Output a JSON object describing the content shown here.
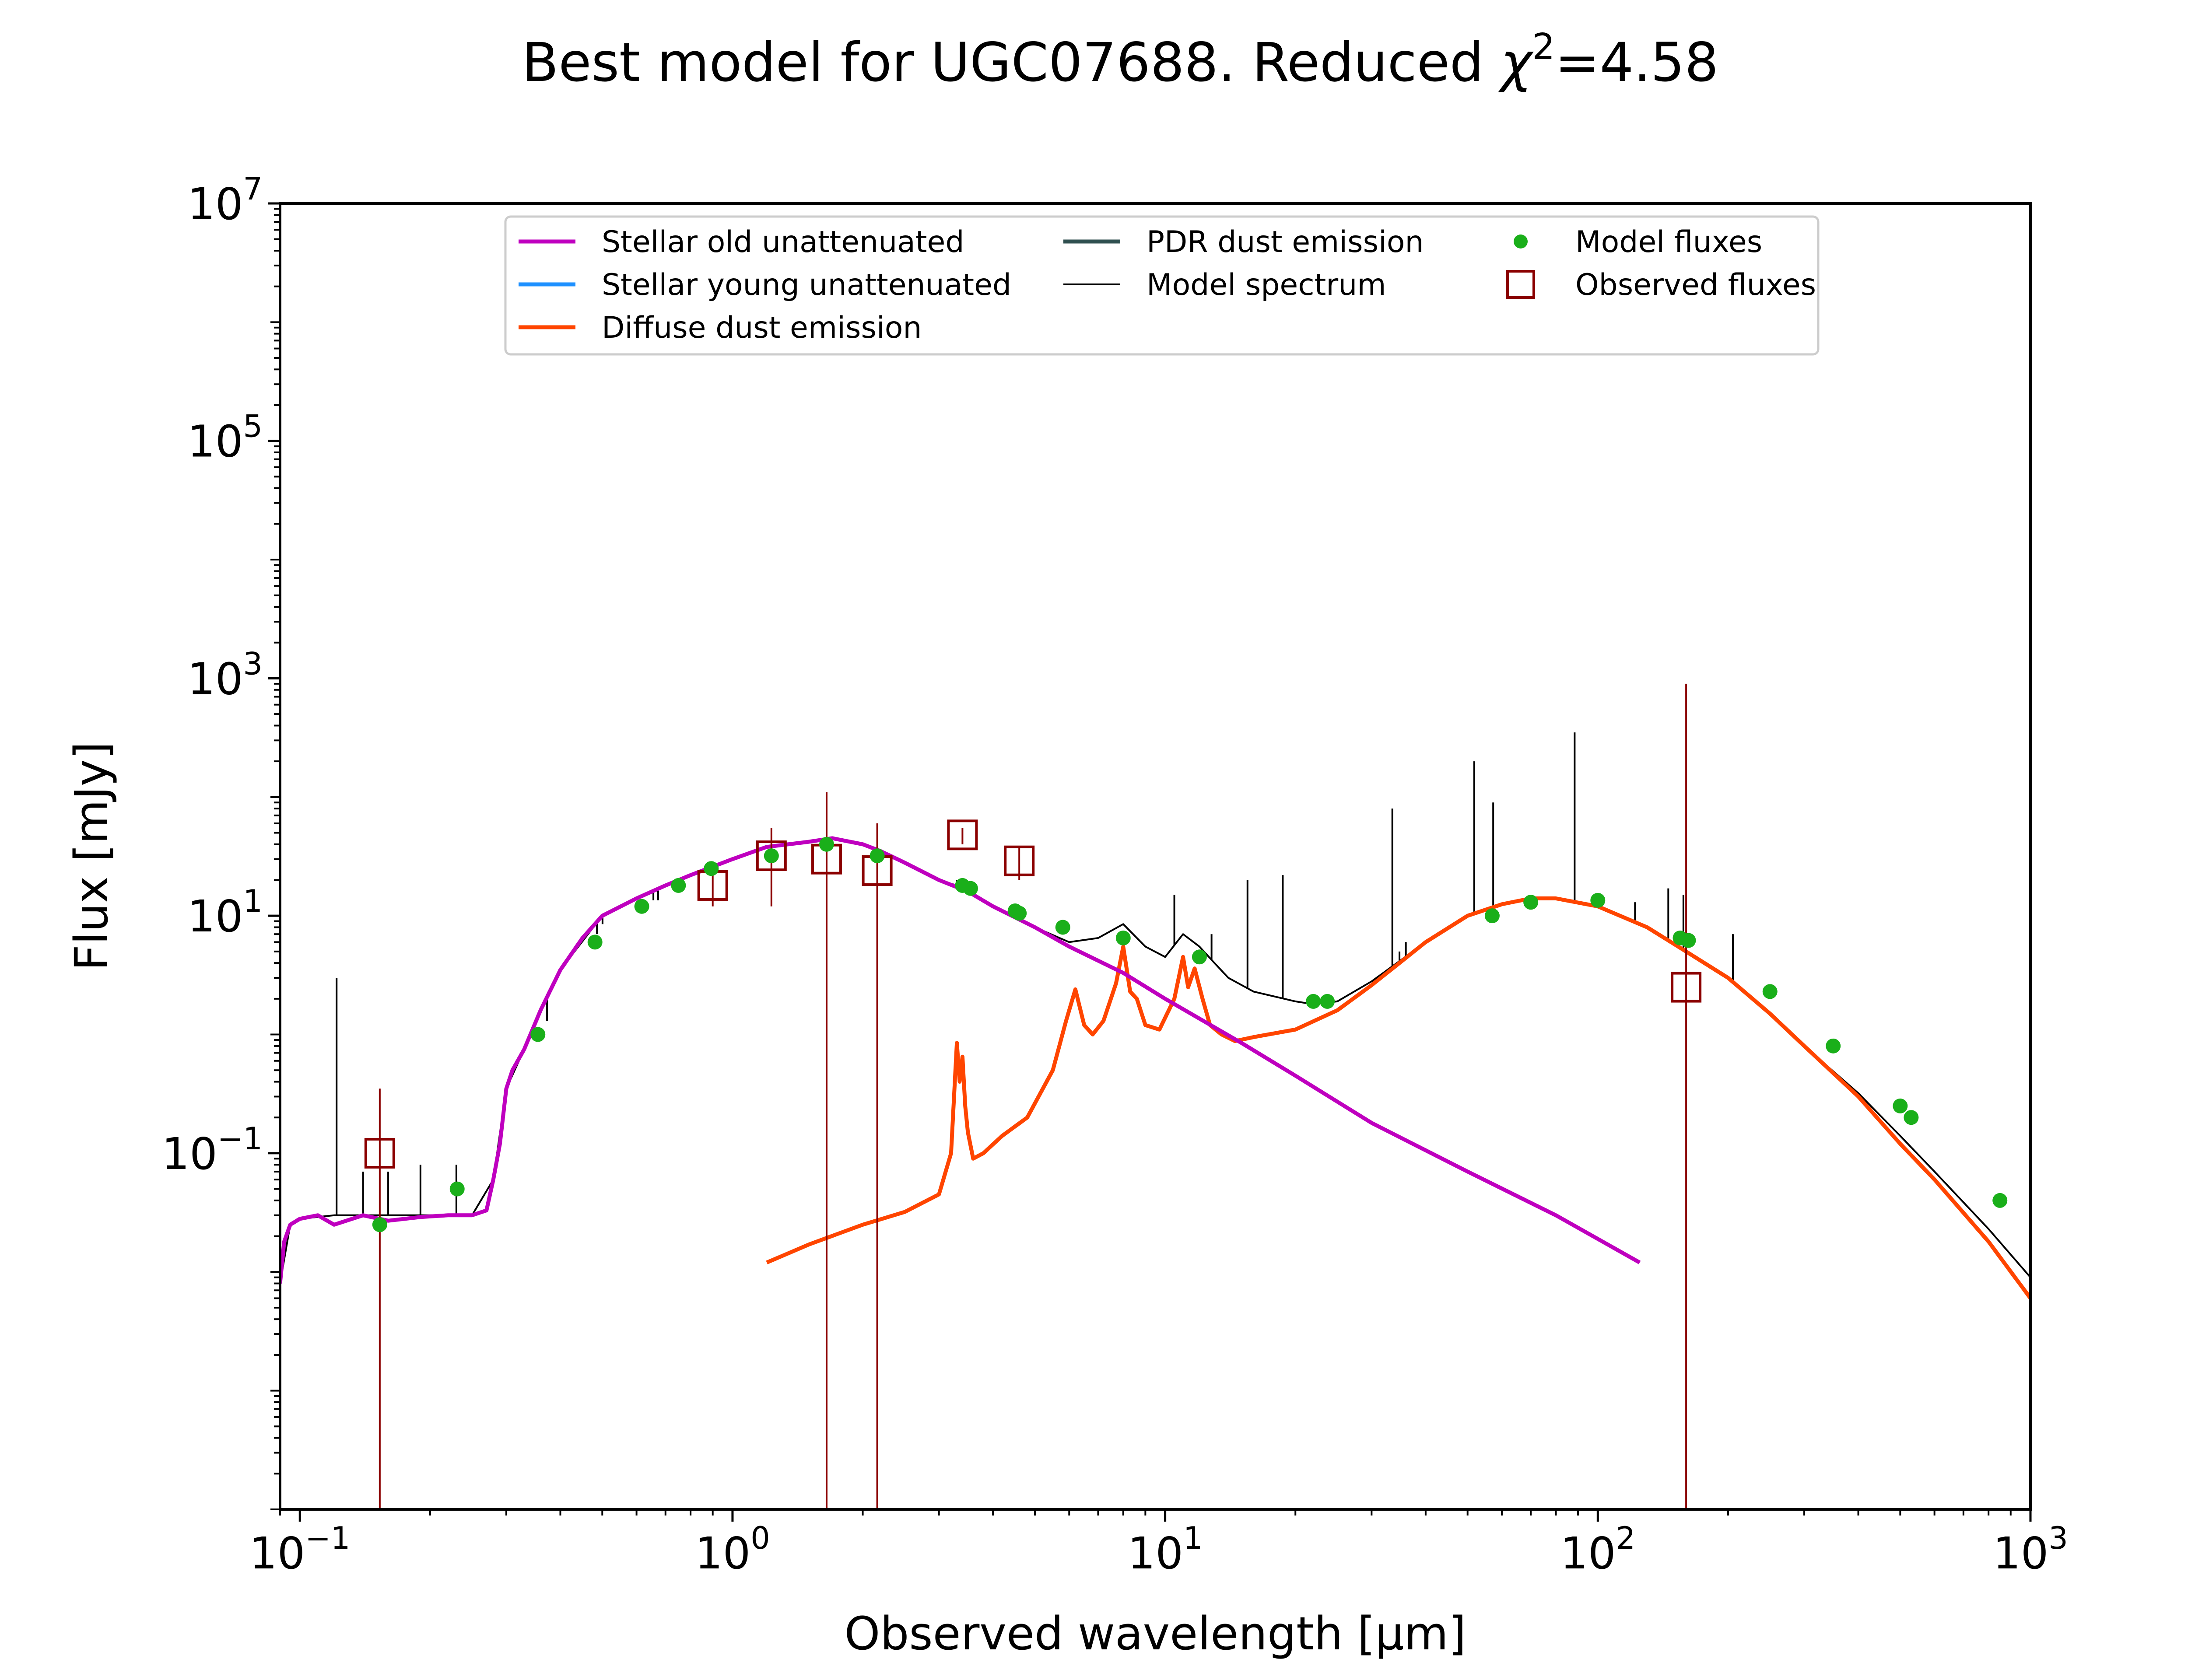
{
  "chart_data": {
    "type": "line",
    "title": "Best model for UGC07688. Reduced χ²=4.58",
    "title_parts": {
      "main": "Best model for UGC07688. Reduced ",
      "chi": "χ",
      "sup": "2",
      "value": "=4.58"
    },
    "xlabel": "Observed wavelength [μm]",
    "ylabel": "Flux [mJy]",
    "x_scale": "log",
    "y_scale": "log",
    "xlim": [
      0.09,
      1000
    ],
    "ylim": [
      0.0001,
      10000000
    ],
    "x_ticks": [
      {
        "value": 0.1,
        "base": "10",
        "exp": "−1"
      },
      {
        "value": 1,
        "base": "10",
        "exp": "0"
      },
      {
        "value": 10,
        "base": "10",
        "exp": "1"
      },
      {
        "value": 100,
        "base": "10",
        "exp": "2"
      },
      {
        "value": 1000,
        "base": "10",
        "exp": "3"
      }
    ],
    "y_ticks": [
      {
        "value": 0.1,
        "base": "10",
        "exp": "−1"
      },
      {
        "value": 10,
        "base": "10",
        "exp": "1"
      },
      {
        "value": 1000,
        "base": "10",
        "exp": "3"
      },
      {
        "value": 100000,
        "base": "10",
        "exp": "5"
      },
      {
        "value": 10000000,
        "base": "10",
        "exp": "7"
      }
    ],
    "grid": false,
    "legend_position": "top-center",
    "legend": [
      {
        "label": "Stellar old unattenuated",
        "color": "#bf00bf",
        "kind": "line"
      },
      {
        "label": "Stellar young unattenuated",
        "color": "#1e90ff",
        "kind": "line"
      },
      {
        "label": "Diffuse dust emission",
        "color": "#ff4500",
        "kind": "line"
      },
      {
        "label": "PDR dust emission",
        "color": "#2f4f4f",
        "kind": "line"
      },
      {
        "label": "Model spectrum",
        "color": "#000000",
        "kind": "thin-line"
      },
      {
        "label": "Model fluxes",
        "color": "#1aaf1a",
        "kind": "dot"
      },
      {
        "label": "Observed fluxes",
        "color": "#8b0000",
        "kind": "square"
      }
    ],
    "series": [
      {
        "name": "Stellar old unattenuated",
        "color": "#bf00bf",
        "x": [
          0.09,
          0.092,
          0.095,
          0.1,
          0.11,
          0.12,
          0.14,
          0.16,
          0.19,
          0.22,
          0.25,
          0.27,
          0.28,
          0.29,
          0.3,
          0.31,
          0.33,
          0.36,
          0.4,
          0.45,
          0.5,
          0.6,
          0.7,
          0.8,
          1.0,
          1.2,
          1.5,
          1.7,
          2.0,
          2.2,
          2.5,
          3.0,
          3.5,
          4.0,
          5.0,
          6.0,
          8.0,
          10,
          15,
          20,
          30,
          50,
          80,
          125
        ],
        "values": [
          0.008,
          0.018,
          0.025,
          0.028,
          0.03,
          0.025,
          0.03,
          0.027,
          0.029,
          0.03,
          0.03,
          0.033,
          0.06,
          0.12,
          0.35,
          0.5,
          0.75,
          1.6,
          3.5,
          6.5,
          10,
          14,
          18,
          22,
          30,
          38,
          42,
          45,
          40,
          35,
          28,
          20,
          16,
          12,
          8,
          5.5,
          3.3,
          2.0,
          0.85,
          0.45,
          0.18,
          0.07,
          0.03,
          0.012
        ]
      },
      {
        "name": "Diffuse dust emission",
        "color": "#ff4500",
        "x": [
          1.2,
          1.5,
          2.0,
          2.5,
          3.0,
          3.2,
          3.3,
          3.35,
          3.4,
          3.45,
          3.5,
          3.6,
          3.8,
          4.2,
          4.8,
          5.5,
          5.9,
          6.2,
          6.5,
          6.8,
          7.2,
          7.7,
          8.0,
          8.3,
          8.6,
          9.0,
          9.7,
          10.5,
          11.0,
          11.3,
          11.7,
          12.2,
          12.7,
          13.5,
          14.5,
          16,
          20,
          25,
          30,
          40,
          50,
          60,
          70,
          80,
          100,
          130,
          160,
          200,
          250,
          300,
          400,
          500,
          600,
          800,
          1000
        ],
        "values": [
          0.012,
          0.017,
          0.025,
          0.032,
          0.045,
          0.1,
          0.85,
          0.4,
          0.65,
          0.25,
          0.15,
          0.09,
          0.1,
          0.14,
          0.2,
          0.5,
          1.3,
          2.4,
          1.2,
          1.0,
          1.3,
          2.7,
          5.5,
          2.3,
          2.0,
          1.2,
          1.1,
          2.0,
          4.5,
          2.5,
          3.6,
          2.0,
          1.2,
          1.0,
          0.88,
          0.95,
          1.1,
          1.6,
          2.6,
          6.0,
          10,
          12.5,
          14,
          14,
          12,
          8,
          5,
          3.0,
          1.5,
          0.8,
          0.3,
          0.12,
          0.06,
          0.018,
          0.006
        ]
      },
      {
        "name": "Model spectrum",
        "color": "#000000",
        "x": [
          0.09,
          0.095,
          0.1,
          0.12,
          0.15,
          0.2,
          0.25,
          0.28,
          0.3,
          0.33,
          0.36,
          0.4,
          0.5,
          0.6,
          0.8,
          1.0,
          1.2,
          1.5,
          1.7,
          2.0,
          2.5,
          3.0,
          3.3,
          3.5,
          4.0,
          5.0,
          6.0,
          7.0,
          8.0,
          9.0,
          10,
          11,
          12,
          13,
          14,
          16,
          20,
          22,
          25,
          30,
          40,
          50,
          60,
          70,
          80,
          100,
          130,
          160,
          200,
          250,
          300,
          400,
          500,
          600,
          800,
          1000
        ],
        "values": [
          0.008,
          0.025,
          0.028,
          0.03,
          0.03,
          0.03,
          0.03,
          0.06,
          0.35,
          0.75,
          1.6,
          3.5,
          10,
          14,
          22,
          30,
          38,
          42,
          45,
          40,
          28,
          20,
          18,
          16,
          12,
          8,
          6,
          6.5,
          8.5,
          5.5,
          4.5,
          7,
          5.5,
          4,
          3,
          2.3,
          1.9,
          1.8,
          1.9,
          2.8,
          6.0,
          10,
          12.5,
          14,
          14,
          12,
          8,
          5,
          3.0,
          1.5,
          0.8,
          0.32,
          0.14,
          0.07,
          0.023,
          0.009
        ]
      }
    ],
    "emission_lines": [
      {
        "x": 0.1216,
        "peak": 3.0
      },
      {
        "x": 0.14,
        "peak": 0.07
      },
      {
        "x": 0.16,
        "peak": 0.07
      },
      {
        "x": 0.19,
        "peak": 0.08
      },
      {
        "x": 0.23,
        "peak": 0.08
      },
      {
        "x": 0.3727,
        "peak": 1.3
      },
      {
        "x": 0.4861,
        "peak": 7.0
      },
      {
        "x": 0.5007,
        "peak": 8.5
      },
      {
        "x": 0.6563,
        "peak": 13.5
      },
      {
        "x": 0.673,
        "peak": 13.5
      },
      {
        "x": 3.3,
        "peak": 20
      },
      {
        "x": 10.5,
        "peak": 15
      },
      {
        "x": 12.8,
        "peak": 7.0
      },
      {
        "x": 15.5,
        "peak": 20
      },
      {
        "x": 18.7,
        "peak": 22
      },
      {
        "x": 33.5,
        "peak": 80
      },
      {
        "x": 34.8,
        "peak": 5.0
      },
      {
        "x": 36,
        "peak": 6.0
      },
      {
        "x": 51.8,
        "peak": 200
      },
      {
        "x": 57.3,
        "peak": 90
      },
      {
        "x": 88.4,
        "peak": 350
      },
      {
        "x": 121.9,
        "peak": 13
      },
      {
        "x": 145.5,
        "peak": 17
      },
      {
        "x": 157.7,
        "peak": 15
      },
      {
        "x": 205.2,
        "peak": 7.0
      }
    ],
    "model_fluxes": {
      "name": "Model fluxes",
      "color": "#1aaf1a",
      "x": [
        0.153,
        0.231,
        0.355,
        0.481,
        0.617,
        0.75,
        0.893,
        1.23,
        1.65,
        2.16,
        3.4,
        3.55,
        4.5,
        4.6,
        5.8,
        8.0,
        12,
        22,
        23.7,
        57,
        70,
        100,
        155,
        162,
        250,
        350,
        500,
        530,
        850
      ],
      "values": [
        0.025,
        0.05,
        1.0,
        6.0,
        12,
        18,
        25,
        32,
        40,
        32,
        18,
        17,
        11,
        10.5,
        8,
        6.5,
        4.5,
        1.9,
        1.9,
        10,
        13,
        13.5,
        6.5,
        6.2,
        2.3,
        0.8,
        0.25,
        0.2,
        0.04
      ]
    },
    "observed_fluxes": {
      "name": "Observed fluxes",
      "color": "#8b0000",
      "points": [
        {
          "x": 0.153,
          "y": 0.1,
          "err_lo": 0.0001,
          "err_hi": 0.35
        },
        {
          "x": 0.9,
          "y": 18,
          "err_lo": 12,
          "err_hi": 25
        },
        {
          "x": 1.23,
          "y": 32,
          "err_lo": 12,
          "err_hi": 55
        },
        {
          "x": 1.65,
          "y": 30,
          "err_lo": 0.0001,
          "err_hi": 110
        },
        {
          "x": 2.16,
          "y": 24,
          "err_lo": 0.0001,
          "err_hi": 60
        },
        {
          "x": 3.4,
          "y": 48,
          "err_lo": 40,
          "err_hi": 55
        },
        {
          "x": 4.6,
          "y": 29,
          "err_lo": 20,
          "err_hi": 38
        },
        {
          "x": 160,
          "y": 2.5,
          "err_lo": 0.0001,
          "err_hi": 900
        }
      ]
    }
  }
}
